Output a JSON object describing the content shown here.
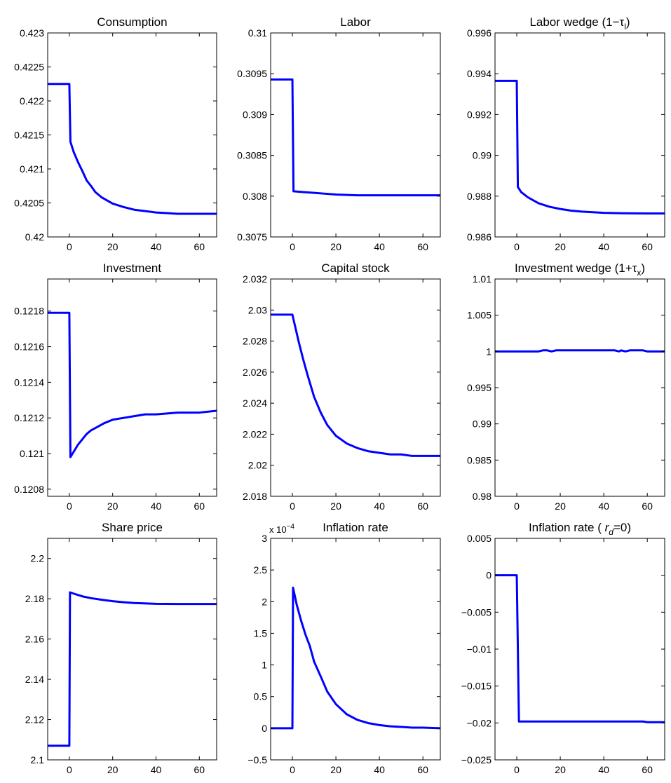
{
  "figure": {
    "line_color": "#0000ff"
  },
  "chart_data": [
    {
      "type": "line",
      "title": "Consumption",
      "xlim": [
        -10,
        68
      ],
      "ylim": [
        0.42,
        0.423
      ],
      "x_ticks": [
        "0",
        "20",
        "40",
        "60"
      ],
      "y_ticks": [
        "0.42",
        "0.4205",
        "0.421",
        "0.4215",
        "0.422",
        "0.4225",
        "0.423"
      ],
      "series": [
        {
          "x": [
            -10,
            0,
            0.5,
            2,
            4,
            6,
            8,
            10,
            12,
            15,
            20,
            25,
            30,
            35,
            40,
            45,
            50,
            55,
            60,
            68
          ],
          "y": [
            0.42225,
            0.42225,
            0.4214,
            0.42125,
            0.4211,
            0.42097,
            0.42083,
            0.42075,
            0.42066,
            0.42058,
            0.42049,
            0.42044,
            0.4204,
            0.42038,
            0.42036,
            0.42035,
            0.42034,
            0.42034,
            0.42034,
            0.42034
          ]
        }
      ]
    },
    {
      "type": "line",
      "title": "Labor",
      "xlim": [
        -10,
        68
      ],
      "ylim": [
        0.3075,
        0.31
      ],
      "x_ticks": [
        "0",
        "20",
        "40",
        "60"
      ],
      "y_ticks": [
        "0.3075",
        "0.308",
        "0.3085",
        "0.309",
        "0.3095",
        "0.31"
      ],
      "series": [
        {
          "x": [
            -10,
            0,
            0.5,
            5,
            10,
            15,
            20,
            30,
            40,
            50,
            60,
            68
          ],
          "y": [
            0.30943,
            0.30943,
            0.30806,
            0.30805,
            0.30804,
            0.30803,
            0.30802,
            0.30801,
            0.30801,
            0.30801,
            0.30801,
            0.30801
          ]
        }
      ]
    },
    {
      "type": "line",
      "title": "Labor wedge (1−τ",
      "title_subscript": "l",
      "title_suffix": ")",
      "xlim": [
        -10,
        68
      ],
      "ylim": [
        0.986,
        0.996
      ],
      "x_ticks": [
        "0",
        "20",
        "40",
        "60"
      ],
      "y_ticks": [
        "0.986",
        "0.988",
        "0.99",
        "0.992",
        "0.994",
        "0.996"
      ],
      "series": [
        {
          "x": [
            -10,
            0,
            0.5,
            2,
            5,
            10,
            15,
            20,
            25,
            30,
            35,
            40,
            50,
            60,
            68
          ],
          "y": [
            0.99365,
            0.99365,
            0.98845,
            0.9882,
            0.98795,
            0.98765,
            0.98748,
            0.98737,
            0.98729,
            0.98724,
            0.98721,
            0.98718,
            0.98716,
            0.98715,
            0.98715
          ]
        }
      ]
    },
    {
      "type": "line",
      "title": "Investment",
      "xlim": [
        -10,
        68
      ],
      "ylim": [
        0.12076,
        0.12198
      ],
      "x_ticks": [
        "0",
        "20",
        "40",
        "60"
      ],
      "y_ticks": [
        "0.1208",
        "0.121",
        "0.1212",
        "0.1214",
        "0.1216",
        "0.1218"
      ],
      "series": [
        {
          "x": [
            -10,
            0,
            0.5,
            2,
            4,
            6,
            8,
            10,
            13,
            16,
            20,
            25,
            30,
            35,
            40,
            50,
            60,
            68
          ],
          "y": [
            0.12179,
            0.12179,
            0.12098,
            0.12101,
            0.12105,
            0.12108,
            0.12111,
            0.12113,
            0.12115,
            0.12117,
            0.12119,
            0.1212,
            0.12121,
            0.12122,
            0.12122,
            0.12123,
            0.12123,
            0.12124
          ]
        }
      ]
    },
    {
      "type": "line",
      "title": "Capital stock",
      "xlim": [
        -10,
        68
      ],
      "ylim": [
        2.018,
        2.032
      ],
      "x_ticks": [
        "0",
        "20",
        "40",
        "60"
      ],
      "y_ticks": [
        "2.018",
        "2.02",
        "2.022",
        "2.024",
        "2.026",
        "2.028",
        "2.03",
        "2.032"
      ],
      "series": [
        {
          "x": [
            -10,
            0,
            1,
            3,
            5,
            7,
            10,
            13,
            16,
            20,
            25,
            30,
            35,
            40,
            45,
            50,
            55,
            60,
            68
          ],
          "y": [
            2.0297,
            2.0297,
            2.0291,
            2.0279,
            2.0268,
            2.0258,
            2.0244,
            2.0234,
            2.0226,
            2.0219,
            2.0214,
            2.0211,
            2.0209,
            2.0208,
            2.0207,
            2.0207,
            2.0206,
            2.0206,
            2.0206
          ]
        }
      ]
    },
    {
      "type": "line",
      "title": "Investment wedge (1+τ",
      "title_subscript": "x",
      "title_suffix": ")",
      "xlim": [
        -10,
        68
      ],
      "ylim": [
        0.98,
        1.01
      ],
      "x_ticks": [
        "0",
        "20",
        "40",
        "60"
      ],
      "y_ticks": [
        "0.98",
        "0.985",
        "0.99",
        "0.995",
        "1",
        "1.005",
        "1.01"
      ],
      "series": [
        {
          "x": [
            -10,
            0,
            10,
            12,
            14,
            16,
            18,
            30,
            45,
            47,
            48,
            50,
            52,
            58,
            60,
            68
          ],
          "y": [
            1.0,
            1.0,
            1.0,
            1.00015,
            1.00015,
            1.0,
            1.00015,
            1.00015,
            1.00015,
            1.0,
            1.00015,
            1.0,
            1.00015,
            1.00015,
            1.0,
            1.0
          ]
        }
      ]
    },
    {
      "type": "line",
      "title": "Share price",
      "xlim": [
        -10,
        68
      ],
      "ylim": [
        2.1,
        2.21
      ],
      "x_ticks": [
        "0",
        "20",
        "40",
        "60"
      ],
      "y_ticks": [
        "2.1",
        "2.12",
        "2.14",
        "2.16",
        "2.18",
        "2.2"
      ],
      "series": [
        {
          "x": [
            -10,
            0,
            0.3,
            3,
            6,
            10,
            15,
            20,
            25,
            30,
            40,
            50,
            60,
            68
          ],
          "y": [
            2.107,
            2.107,
            2.1832,
            2.1822,
            2.1812,
            2.1803,
            2.1795,
            2.1788,
            2.1783,
            2.1779,
            2.1775,
            2.1774,
            2.1774,
            2.1774
          ]
        }
      ]
    },
    {
      "type": "line",
      "title": "Inflation rate",
      "y_multiplier": "x 10",
      "y_exponent": "−4",
      "xlim": [
        -10,
        68
      ],
      "ylim": [
        -0.5,
        3
      ],
      "x_ticks": [
        "0",
        "20",
        "40",
        "60"
      ],
      "y_ticks": [
        "−0.5",
        "0",
        "0.5",
        "1",
        "1.5",
        "2",
        "2.5",
        "3"
      ],
      "series": [
        {
          "x": [
            -10,
            0,
            0.3,
            2,
            4,
            6,
            8,
            10,
            13,
            16,
            20,
            25,
            30,
            35,
            40,
            45,
            50,
            55,
            60,
            68
          ],
          "y": [
            0,
            0,
            2.22,
            1.95,
            1.7,
            1.48,
            1.3,
            1.05,
            0.82,
            0.58,
            0.38,
            0.22,
            0.13,
            0.08,
            0.05,
            0.03,
            0.02,
            0.01,
            0.01,
            0.0
          ]
        }
      ]
    },
    {
      "type": "line",
      "title": "Inflation rate ( ",
      "title_italic": "r",
      "title_subscript": "d",
      "title_suffix": "=0)",
      "xlim": [
        -10,
        68
      ],
      "ylim": [
        -0.025,
        0.005
      ],
      "x_ticks": [
        "0",
        "20",
        "40",
        "60"
      ],
      "y_ticks": [
        "−0.025",
        "−0.02",
        "−0.015",
        "−0.01",
        "−0.005",
        "0",
        "0.005"
      ],
      "series": [
        {
          "x": [
            -10,
            0,
            1,
            10,
            30,
            50,
            58,
            60,
            68
          ],
          "y": [
            0,
            0,
            -0.0198,
            -0.0198,
            -0.0198,
            -0.0198,
            -0.0198,
            -0.0199,
            -0.0199
          ]
        }
      ]
    }
  ]
}
